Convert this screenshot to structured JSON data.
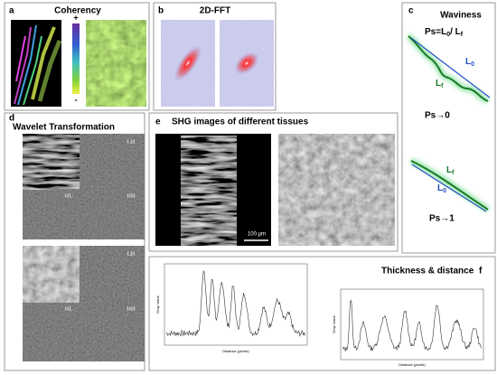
{
  "panels": {
    "a": {
      "label": "a",
      "title": "Coherency",
      "scale_max": "+",
      "scale_min": "-"
    },
    "b": {
      "label": "b",
      "title": "2D-FFT"
    },
    "c": {
      "label": "c",
      "title": "Waviness",
      "formula": [
        "Ps=L",
        "0",
        "/ L",
        "f"
      ],
      "wavy": {
        "l0": [
          "L",
          "0"
        ],
        "lf": [
          "L",
          "f"
        ],
        "result": "Ps→0"
      },
      "straight": {
        "lf": [
          "L",
          "f"
        ],
        "l0": [
          "L",
          "0"
        ],
        "result": "Ps→1"
      }
    },
    "d": {
      "label": "d",
      "title": "Wavelet Transformation",
      "quadrants": [
        "LH",
        "HL",
        "HH"
      ]
    },
    "e": {
      "label": "e",
      "title": "SHG images of different tissues",
      "scale_bar": "100 μm"
    },
    "f": {
      "label": "f",
      "title": "Thickness & distance",
      "x_axis": "Distance (pixels)",
      "y_axis": "Gray Value"
    }
  }
}
